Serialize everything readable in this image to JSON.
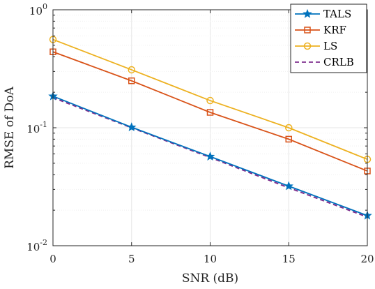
{
  "chart_data": {
    "type": "line",
    "xlabel": "SNR (dB)",
    "ylabel": "RMSE of DoA",
    "yscale": "log",
    "xlim": [
      0,
      20
    ],
    "ylim": [
      0.01,
      1
    ],
    "grid": true,
    "legend_position": "top-right",
    "x": [
      0,
      5,
      10,
      15,
      20
    ],
    "x_tick_labels": [
      "0",
      "5",
      "10",
      "15",
      "20"
    ],
    "y_ticks": [
      {
        "value": 1,
        "base": "10",
        "exp": "0"
      },
      {
        "value": 0.1,
        "base": "10",
        "exp": "-1"
      },
      {
        "value": 0.01,
        "base": "10",
        "exp": "-2"
      }
    ],
    "series": [
      {
        "name": "TALS",
        "values": [
          0.185,
          0.101,
          0.057,
          0.032,
          0.018
        ],
        "color": "#0072BD",
        "marker": "star",
        "dash": "solid"
      },
      {
        "name": "KRF",
        "values": [
          0.44,
          0.25,
          0.135,
          0.08,
          0.043
        ],
        "color": "#D95319",
        "marker": "square",
        "dash": "solid"
      },
      {
        "name": "LS",
        "values": [
          0.56,
          0.31,
          0.17,
          0.1,
          0.054
        ],
        "color": "#EDB120",
        "marker": "circle",
        "dash": "solid"
      },
      {
        "name": "CRLB",
        "values": [
          0.18,
          0.1,
          0.056,
          0.031,
          0.0175
        ],
        "color": "#7E2F8E",
        "marker": "none",
        "dash": "dashed"
      }
    ]
  }
}
